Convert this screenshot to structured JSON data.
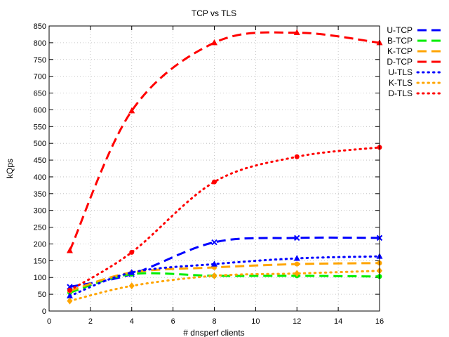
{
  "chart_data": {
    "type": "line",
    "title": "TCP vs TLS",
    "xlabel": "# dnsperf clients",
    "ylabel": "kQps",
    "xlim": [
      0,
      16
    ],
    "ylim": [
      0,
      850
    ],
    "xticks": [
      "0",
      "2",
      "4",
      "6",
      "8",
      "10",
      "12",
      "14",
      "16"
    ],
    "yticks": [
      "0",
      "50",
      "100",
      "150",
      "200",
      "250",
      "300",
      "350",
      "400",
      "450",
      "500",
      "550",
      "600",
      "650",
      "700",
      "750",
      "800",
      "850"
    ],
    "grid": true,
    "legend_position": "right",
    "x": [
      1,
      4,
      8,
      12,
      16
    ],
    "series": [
      {
        "name": "U-TCP",
        "color": "#0000ff",
        "style": "dashed",
        "marker": "x",
        "values": [
          72,
          110,
          205,
          218,
          218
        ]
      },
      {
        "name": "B-TCP",
        "color": "#00ee00",
        "style": "dashed",
        "marker": "circle",
        "values": [
          55,
          110,
          105,
          105,
          103
        ]
      },
      {
        "name": "K-TCP",
        "color": "#ffa500",
        "style": "dashed",
        "marker": "circle",
        "values": [
          60,
          115,
          130,
          140,
          143
        ]
      },
      {
        "name": "D-TCP",
        "color": "#ff0000",
        "style": "dashed",
        "marker": "triangle",
        "values": [
          180,
          597,
          800,
          830,
          800
        ]
      },
      {
        "name": "U-TLS",
        "color": "#0000ff",
        "style": "dotted",
        "marker": "triangle",
        "values": [
          45,
          115,
          140,
          157,
          163
        ]
      },
      {
        "name": "K-TLS",
        "color": "#ffa500",
        "style": "dotted",
        "marker": "diamond",
        "values": [
          30,
          75,
          105,
          112,
          120
        ]
      },
      {
        "name": "D-TLS",
        "color": "#ff0000",
        "style": "dotted",
        "marker": "circle",
        "values": [
          62,
          175,
          385,
          460,
          488
        ]
      }
    ]
  }
}
